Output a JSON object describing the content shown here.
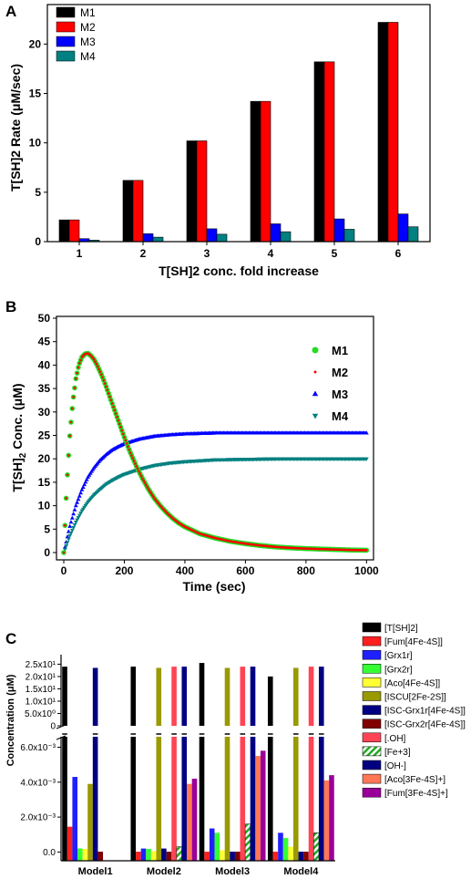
{
  "chart_data": [
    {
      "panel": "A",
      "type": "bar",
      "xlabel": "T[SH]2 conc. fold increase",
      "ylabel": "T[SH]2 Rate (μM/sec)",
      "categories": [
        "1",
        "2",
        "3",
        "4",
        "5",
        "6"
      ],
      "yticks": [
        0,
        5,
        10,
        15,
        20
      ],
      "ylim": [
        0,
        24
      ],
      "legend_position": "top-left",
      "series": [
        {
          "name": "M1",
          "color": "#000000",
          "values": [
            2.2,
            6.2,
            10.2,
            14.2,
            18.2,
            22.2
          ]
        },
        {
          "name": "M2",
          "color": "#ff0000",
          "values": [
            2.2,
            6.2,
            10.2,
            14.2,
            18.2,
            22.2
          ]
        },
        {
          "name": "M3",
          "color": "#0000ff",
          "values": [
            0.3,
            0.8,
            1.3,
            1.8,
            2.3,
            2.8
          ]
        },
        {
          "name": "M4",
          "color": "#008080",
          "values": [
            0.15,
            0.45,
            0.75,
            1.0,
            1.25,
            1.5
          ]
        }
      ]
    },
    {
      "panel": "B",
      "type": "line",
      "xlabel": "Time (sec)",
      "ylabel_main": "T[SH]",
      "ylabel_sub": "2",
      "ylabel_rest": " Conc. (μM)",
      "xlim": [
        0,
        1000
      ],
      "ylim": [
        0,
        50
      ],
      "xticks": [
        0,
        200,
        400,
        600,
        800,
        1000
      ],
      "yticks": [
        0,
        5,
        10,
        15,
        20,
        25,
        30,
        35,
        40,
        45,
        50
      ],
      "legend_position": "top-right",
      "series": [
        {
          "name": "M1",
          "color": "#22dd22",
          "marker": "circle",
          "x": [
            0,
            10,
            20,
            30,
            40,
            50,
            60,
            70,
            80,
            90,
            100,
            110,
            120,
            130,
            140,
            150,
            160,
            170,
            180,
            190,
            200,
            220,
            240,
            260,
            280,
            300,
            320,
            340,
            360,
            380,
            400,
            450,
            500,
            550,
            600,
            650,
            700,
            750,
            800,
            850,
            900,
            950,
            1000
          ],
          "y": [
            0,
            14.5,
            24.9,
            32.2,
            37.1,
            40.1,
            41.7,
            42.4,
            42.5,
            42.0,
            41.2,
            40.0,
            38.6,
            37.1,
            35.4,
            33.6,
            31.8,
            30.0,
            28.2,
            26.4,
            24.6,
            21.3,
            18.4,
            15.8,
            13.5,
            11.5,
            9.9,
            8.5,
            7.3,
            6.3,
            5.5,
            4.0,
            3.1,
            2.4,
            1.9,
            1.5,
            1.2,
            1.0,
            0.85,
            0.75,
            0.65,
            0.55,
            0.5
          ]
        },
        {
          "name": "M2",
          "color": "#ff0000",
          "marker": "dot",
          "x": [
            0,
            10,
            20,
            30,
            40,
            50,
            60,
            70,
            80,
            90,
            100,
            110,
            120,
            130,
            140,
            150,
            160,
            170,
            180,
            190,
            200,
            220,
            240,
            260,
            280,
            300,
            320,
            340,
            360,
            380,
            400,
            450,
            500,
            550,
            600,
            650,
            700,
            750,
            800,
            850,
            900,
            950,
            1000
          ],
          "y": [
            0,
            14.5,
            24.9,
            32.2,
            37.1,
            40.1,
            41.7,
            42.4,
            42.5,
            42.0,
            41.2,
            40.0,
            38.6,
            37.1,
            35.4,
            33.6,
            31.8,
            30.0,
            28.2,
            26.4,
            24.6,
            21.3,
            18.4,
            15.8,
            13.5,
            11.5,
            9.9,
            8.5,
            7.3,
            6.3,
            5.5,
            4.0,
            3.1,
            2.4,
            1.9,
            1.5,
            1.2,
            1.0,
            0.85,
            0.75,
            0.65,
            0.55,
            0.5
          ]
        },
        {
          "name": "M3",
          "color": "#0000ff",
          "marker": "triangle-up",
          "x": [
            0,
            20,
            40,
            60,
            80,
            100,
            120,
            140,
            160,
            180,
            200,
            250,
            300,
            350,
            400,
            450,
            500,
            600,
            700,
            800,
            900,
            1000
          ],
          "y": [
            0,
            5.6,
            10.0,
            13.4,
            16.1,
            18.1,
            19.7,
            20.9,
            21.9,
            22.6,
            23.2,
            24.2,
            24.8,
            25.1,
            25.3,
            25.4,
            25.5,
            25.5,
            25.5,
            25.5,
            25.5,
            25.5
          ]
        },
        {
          "name": "M4",
          "color": "#008080",
          "marker": "triangle-down",
          "x": [
            0,
            20,
            40,
            60,
            80,
            100,
            120,
            140,
            160,
            180,
            200,
            250,
            300,
            350,
            400,
            450,
            500,
            600,
            700,
            800,
            900,
            1000
          ],
          "y": [
            0,
            3.6,
            6.5,
            8.9,
            10.8,
            12.3,
            13.5,
            14.6,
            15.4,
            16.1,
            16.7,
            17.8,
            18.6,
            19.1,
            19.4,
            19.6,
            19.8,
            19.9,
            20.0,
            20.0,
            20.0,
            20.0
          ]
        }
      ]
    },
    {
      "panel": "C",
      "type": "bar",
      "ylabel": "Concentration (μM)",
      "categories": [
        "Model1",
        "Model2",
        "Model3",
        "Model4"
      ],
      "axis_break": true,
      "upper_yticks": [
        "2.5x10¹",
        "2.0x10¹",
        "1.5x10¹",
        "1.0x10¹",
        "5.0x10⁰",
        "0"
      ],
      "upper_tick_values": [
        25,
        20,
        15,
        10,
        5,
        0
      ],
      "upper_ylim": [
        0,
        27
      ],
      "lower_yticks": [
        "6.0x10⁻³",
        "4.0x10⁻³",
        "2.0x10⁻³",
        "0.0"
      ],
      "lower_tick_values": [
        0.006,
        0.004,
        0.002,
        0
      ],
      "lower_ylim": [
        -0.0005,
        0.0066
      ],
      "legend_position": "right",
      "series": [
        {
          "name": "[T[SH]2]",
          "color": "#000000",
          "pattern": "solid",
          "values": [
            24.0,
            24.0,
            25.5,
            20.0
          ]
        },
        {
          "name": "[Fum[4Fe-4S]]",
          "color": "#ff2020",
          "pattern": "solid",
          "values": [
            0.00145,
            2e-05,
            2e-05,
            2e-05
          ]
        },
        {
          "name": "[Grx1r]",
          "color": "#2020ff",
          "pattern": "solid",
          "values": [
            0.0043,
            0.0002,
            0.00135,
            0.0011
          ]
        },
        {
          "name": "[Grx2r]",
          "color": "#33ff33",
          "pattern": "solid",
          "values": [
            0.0002,
            0.00018,
            0.0011,
            0.0008
          ]
        },
        {
          "name": "[Aco[4Fe-4S]]",
          "color": "#ffff33",
          "pattern": "solid",
          "values": [
            0.00018,
            5e-05,
            0.0001,
            0.0003
          ]
        },
        {
          "name": "[ISCU[2Fe-2S]]",
          "color": "#999900",
          "pattern": "solid",
          "values": [
            0.0039,
            23.5,
            23.5,
            23.5
          ]
        },
        {
          "name": "[ISC-Grx1r[4Fe-4S]]",
          "color": "#000080",
          "pattern": "solid",
          "values": [
            23.5,
            0.0002,
            2e-05,
            2e-05
          ]
        },
        {
          "name": "[ISC-Grx2r[4Fe-4S]]",
          "color": "#800000",
          "pattern": "solid",
          "values": [
            2e-05,
            2e-05,
            2e-05,
            2e-05
          ]
        },
        {
          "name": "[.OH]",
          "color": "#ff4455",
          "pattern": "solid",
          "values": [
            0,
            24.0,
            24.0,
            24.0
          ]
        },
        {
          "name": "[Fe+3]",
          "color": "#22aa22",
          "pattern": "hatch",
          "values": [
            0,
            0.0003,
            0.0016,
            0.0011
          ]
        },
        {
          "name": "[OH-]",
          "color": "#000080",
          "pattern": "solid",
          "values": [
            0,
            24.0,
            24.0,
            24.0
          ]
        },
        {
          "name": "[Aco[3Fe-4S]+]",
          "color": "#ff7755",
          "pattern": "solid",
          "values": [
            0,
            0.0039,
            0.0055,
            0.0041
          ]
        },
        {
          "name": "[Fum[3Fe-4S]+]",
          "color": "#990099",
          "pattern": "solid",
          "values": [
            0,
            0.0042,
            0.0058,
            0.0044
          ]
        }
      ]
    }
  ],
  "panel_labels": {
    "a": "A",
    "b": "B",
    "c": "C"
  }
}
